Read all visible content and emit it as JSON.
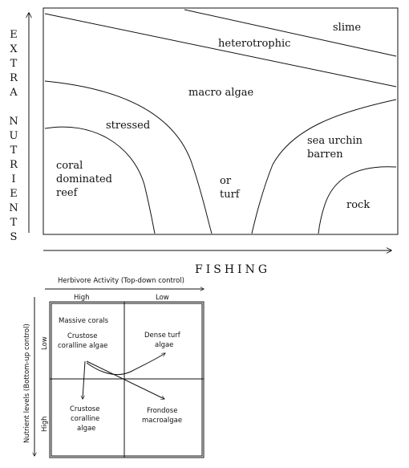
{
  "top_diagram": {
    "y_axis_label": "EXTRA NUTRIENTS",
    "x_axis_label": "FISHING",
    "regions": {
      "slime": "slime",
      "heterotrophic": "heterotrophic",
      "macro_algae": "macro algae",
      "stressed": "stressed",
      "sea_urchin_line1": "sea urchin",
      "sea_urchin_line2": "barren",
      "coral_line1": "coral",
      "coral_line2": "dominated",
      "coral_line3": "reef",
      "turf_line1": "or",
      "turf_line2": "turf",
      "rock": "rock"
    }
  },
  "bottom_diagram": {
    "x_axis_label": "Herbivore Activity (Top-down control)",
    "y_axis_label": "Nutrient levels (Bottom-up control)",
    "col_high": "High",
    "col_low": "Low",
    "row_low": "Low",
    "row_high": "High",
    "cells": {
      "top_left_line1": "Massive corals",
      "top_left_line2": "Crustose",
      "top_left_line3": "coralline algae",
      "top_right_line1": "Dense turf",
      "top_right_line2": "algae",
      "bottom_left_line1": "Crustose",
      "bottom_left_line2": "coralline",
      "bottom_left_line3": "algae",
      "bottom_right_line1": "Frondose",
      "bottom_right_line2": "macroalgae"
    }
  }
}
